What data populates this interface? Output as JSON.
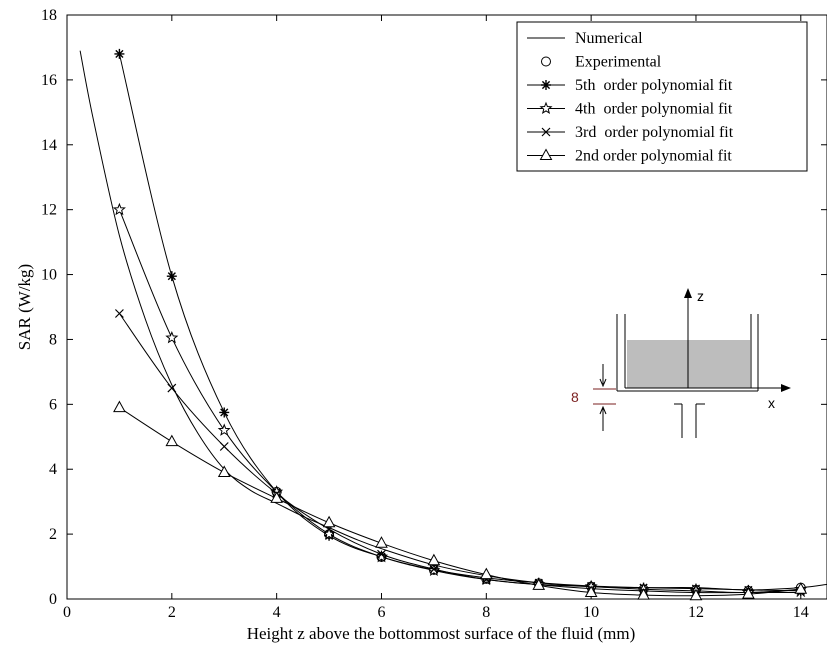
{
  "chart_data": {
    "type": "line",
    "xlabel": "Height z above the bottommost surface of the fluid (mm)",
    "ylabel": "SAR (W/kg)",
    "xlim": [
      0,
      14.5
    ],
    "ylim": [
      0,
      18
    ],
    "xticks": [
      "0",
      "2",
      "4",
      "6",
      "8",
      "10",
      "12",
      "14"
    ],
    "yticks": [
      "0",
      "2",
      "4",
      "6",
      "8",
      "10",
      "12",
      "14",
      "16",
      "18"
    ],
    "grid": false,
    "legend_position": "top-right",
    "series": [
      {
        "name": "Numerical",
        "marker": "none",
        "x": [
          0.25,
          0.5,
          1,
          1.5,
          2,
          2.5,
          3,
          3.5,
          4,
          4.5,
          5,
          5.5,
          6,
          7,
          8,
          9,
          10,
          11,
          12,
          13,
          14,
          14.5
        ],
        "y": [
          16.9,
          14.8,
          11.2,
          8.6,
          6.6,
          5.1,
          4.0,
          3.35,
          2.95,
          2.55,
          2.2,
          1.85,
          1.55,
          1.05,
          0.72,
          0.5,
          0.38,
          0.35,
          0.35,
          0.28,
          0.35,
          0.45
        ]
      },
      {
        "name": "Experimental",
        "marker": "circle",
        "x": [
          4,
          5,
          6,
          7,
          8,
          9,
          10,
          11,
          12,
          13,
          14
        ],
        "y": [
          3.3,
          2.0,
          1.3,
          0.9,
          0.62,
          0.48,
          0.38,
          0.3,
          0.28,
          0.25,
          0.35
        ]
      },
      {
        "name": "5th  order polynomial fit",
        "marker": "asterisk",
        "x": [
          1,
          2,
          3,
          4,
          5,
          6,
          7,
          8,
          9,
          10,
          11,
          12,
          13,
          14
        ],
        "y": [
          16.8,
          9.95,
          5.75,
          3.3,
          1.95,
          1.3,
          0.9,
          0.65,
          0.5,
          0.4,
          0.35,
          0.32,
          0.28,
          0.25
        ]
      },
      {
        "name": "4th  order polynomial fit",
        "marker": "star",
        "x": [
          1,
          2,
          3,
          4,
          5,
          6,
          7,
          8,
          9,
          10,
          11,
          12,
          13,
          14
        ],
        "y": [
          12.0,
          8.05,
          5.2,
          3.3,
          2.0,
          1.3,
          0.88,
          0.6,
          0.45,
          0.38,
          0.3,
          0.25,
          0.2,
          0.3
        ]
      },
      {
        "name": "3rd  order polynomial fit",
        "marker": "x",
        "x": [
          1,
          2,
          3,
          4,
          5,
          6,
          7,
          8,
          9,
          10,
          11,
          12,
          13,
          14
        ],
        "y": [
          8.8,
          6.5,
          4.7,
          3.25,
          2.15,
          1.38,
          0.92,
          0.6,
          0.44,
          0.32,
          0.25,
          0.2,
          0.2,
          0.2
        ]
      },
      {
        "name": "2nd order polynomial fit",
        "marker": "triangle",
        "x": [
          1,
          2,
          3,
          4,
          5,
          6,
          7,
          8,
          9,
          10,
          11,
          12,
          13,
          14
        ],
        "y": [
          5.9,
          4.85,
          3.9,
          3.1,
          2.35,
          1.72,
          1.18,
          0.75,
          0.42,
          0.2,
          0.12,
          0.1,
          0.15,
          0.3
        ]
      }
    ],
    "inset": {
      "z_label": "z",
      "x_label": "x",
      "dim_label": "8",
      "fill_color": "#bdbdbd",
      "accent_color": "#7a1f1f"
    }
  }
}
